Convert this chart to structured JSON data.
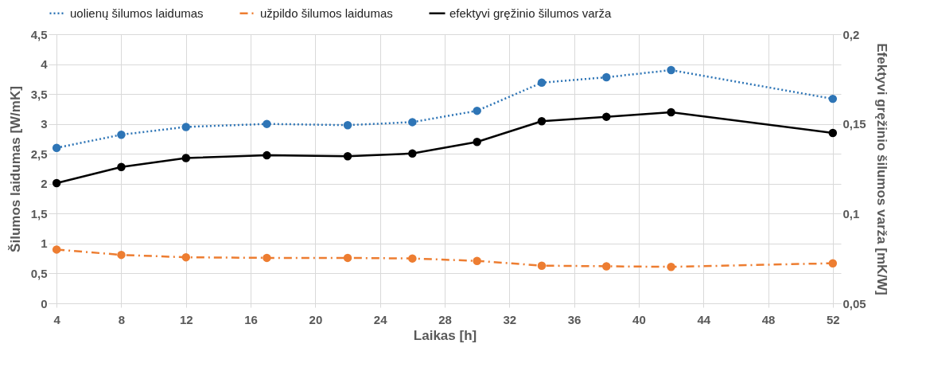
{
  "chart_data": {
    "type": "line",
    "xlabel": "Laikas [h]",
    "ylabel": "Šilumos laidumas [W/mK]",
    "y2label": "Efektyvi gręžinio šilumos varža [mK/W]",
    "x": [
      4,
      8,
      12,
      17,
      22,
      26,
      30,
      34,
      38,
      42,
      52
    ],
    "series": [
      {
        "name": "uolienų šilumos laidumas",
        "color": "#2e75b6",
        "line_style": "dotted",
        "values": [
          2.6,
          2.82,
          2.95,
          3.0,
          2.98,
          3.03,
          3.22,
          3.69,
          3.78,
          3.9,
          3.42
        ]
      },
      {
        "name": "užpildo šilumos laidumas",
        "color": "#ed7d31",
        "line_style": "dashed",
        "values": [
          0.9,
          0.81,
          0.77,
          0.76,
          0.76,
          0.75,
          0.71,
          0.63,
          0.62,
          0.61,
          0.67
        ]
      },
      {
        "name": "efektyvi gręžinio šilumos varža",
        "color": "#000000",
        "line_style": "solid",
        "axis": "y2",
        "values": [
          0.117,
          0.126,
          0.131,
          0.1325,
          0.132,
          0.1335,
          0.14,
          0.1515,
          0.154,
          0.1565,
          0.145
        ]
      }
    ],
    "xlim": [
      3.5,
      52.5
    ],
    "xticks": [
      4,
      8,
      12,
      16,
      20,
      24,
      28,
      32,
      36,
      40,
      44,
      48,
      52
    ],
    "ylim": [
      0,
      4.5
    ],
    "yticks": [
      0,
      {
        "value": 0.5,
        "label": "0,5"
      },
      1,
      {
        "value": 1.5,
        "label": "1,5"
      },
      2,
      {
        "value": 2.5,
        "label": "2,5"
      },
      3,
      {
        "value": 3.5,
        "label": "3,5"
      },
      4,
      {
        "value": 4.5,
        "label": "4,5"
      }
    ],
    "y2lim": [
      0.05,
      0.2
    ],
    "y2ticks": [
      {
        "value": 0.05,
        "label": "0,05"
      },
      {
        "value": 0.1,
        "label": "0,1"
      },
      {
        "value": 0.15,
        "label": "0,15"
      },
      {
        "value": 0.2,
        "label": "0,2"
      }
    ],
    "grid": true,
    "legend": "top",
    "marker": "circle"
  }
}
